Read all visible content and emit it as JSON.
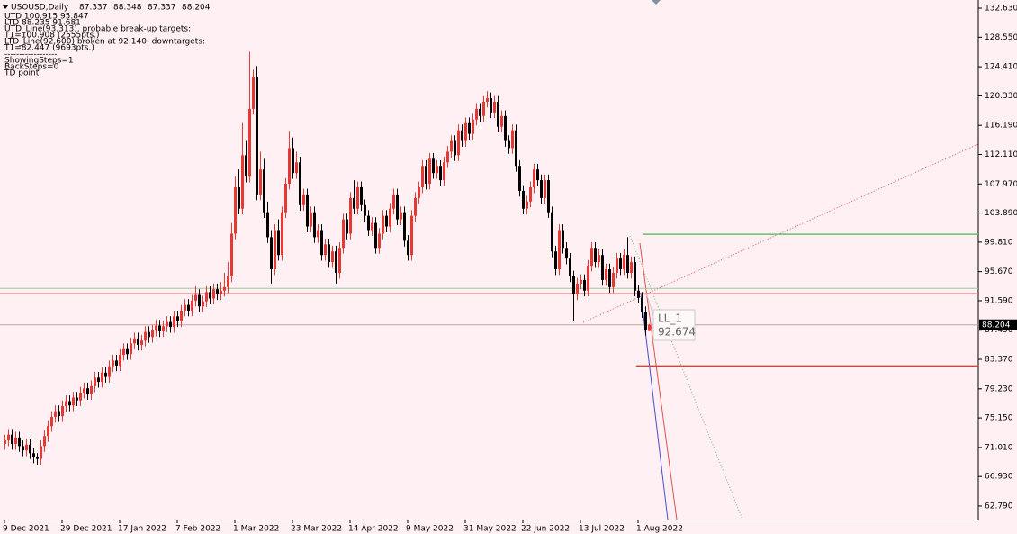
{
  "chart_data": {
    "type": "candlestick",
    "title": "USOUSD,Daily",
    "up_color": "#e53935",
    "down_color": "#000000",
    "background": "#fff0f3",
    "info_lines": [
      "UTD 100.915  95.847",
      "LTD  88.235  91.681",
      "UTD_Line(93.313), probable break-up targets:",
      "T1=100.908 (2555pts.)",
      "LTD_Line(92.600) broken at 92.140, downtargets:",
      "T1=82.447 (9693pts.)",
      "------------------",
      "ShowingSteps=1",
      "BackSteps=0",
      "TD point"
    ],
    "point_label": {
      "label": "LL_1",
      "value": 92.674
    },
    "levels": [
      {
        "value": 93.313,
        "color": "#99cc99"
      },
      {
        "value": 92.6,
        "color": "#e06060"
      },
      {
        "value": 100.908,
        "color": "#66c266"
      },
      {
        "value": 82.447,
        "color": "#e53935"
      }
    ],
    "ylim": [
      60.89,
      133.77
    ],
    "yticks": [
      {
        "value": 132.63,
        "label": "132.630"
      },
      {
        "value": 128.55,
        "label": "128.550"
      },
      {
        "value": 124.41,
        "label": "124.410"
      },
      {
        "value": 120.33,
        "label": "120.330"
      },
      {
        "value": 116.19,
        "label": "116.190"
      },
      {
        "value": 112.11,
        "label": "112.110"
      },
      {
        "value": 107.97,
        "label": "107.970"
      },
      {
        "value": 103.89,
        "label": "103.890"
      },
      {
        "value": 99.81,
        "label": "99.810"
      },
      {
        "value": 95.67,
        "label": "95.670"
      },
      {
        "value": 91.59,
        "label": "91.590"
      },
      {
        "value": 87.45,
        "label": "87.450"
      },
      {
        "value": 83.37,
        "label": "83.370"
      },
      {
        "value": 79.23,
        "label": "79.230"
      },
      {
        "value": 75.15,
        "label": "75.150"
      },
      {
        "value": 71.01,
        "label": "71.010"
      },
      {
        "value": 66.93,
        "label": "66.930"
      },
      {
        "value": 62.79,
        "label": "62.790"
      }
    ],
    "categories": [
      "9 Dec 2021",
      null,
      null,
      null,
      null,
      null,
      null,
      null,
      null,
      null,
      null,
      null,
      null,
      null,
      null,
      null,
      "29 Dec 2021",
      null,
      null,
      null,
      null,
      null,
      null,
      null,
      null,
      null,
      null,
      null,
      null,
      null,
      null,
      null,
      "17 Jan 2022",
      null,
      null,
      null,
      null,
      null,
      null,
      null,
      null,
      null,
      null,
      null,
      null,
      null,
      null,
      null,
      "7 Feb 2022",
      null,
      null,
      null,
      null,
      null,
      null,
      null,
      null,
      null,
      null,
      null,
      null,
      null,
      null,
      null,
      "1 Mar 2022",
      null,
      null,
      null,
      null,
      null,
      null,
      null,
      null,
      null,
      null,
      null,
      null,
      null,
      null,
      null,
      "23 Mar 2022",
      null,
      null,
      null,
      null,
      null,
      null,
      null,
      null,
      null,
      null,
      null,
      null,
      null,
      null,
      null,
      "14 Apr 2022",
      null,
      null,
      null,
      null,
      null,
      null,
      null,
      null,
      null,
      null,
      null,
      null,
      null,
      null,
      null,
      "9 May 2022",
      null,
      null,
      null,
      null,
      null,
      null,
      null,
      null,
      null,
      null,
      null,
      null,
      null,
      null,
      null,
      "31 May 2022",
      null,
      null,
      null,
      null,
      null,
      null,
      null,
      null,
      null,
      null,
      null,
      null,
      null,
      null,
      null,
      "22 Jun 2022",
      null,
      null,
      null,
      null,
      null,
      null,
      null,
      null,
      null,
      null,
      null,
      null,
      null,
      null,
      null,
      "13 Jul 2022",
      null,
      null,
      null,
      null,
      null,
      null,
      null,
      null,
      null,
      null,
      null,
      null,
      null,
      null,
      null,
      "1 Aug 2022",
      null,
      null,
      null
    ],
    "candles": [
      [
        71.5,
        72.8,
        70.7,
        72.0
      ],
      [
        72.0,
        73.6,
        71.2,
        72.8
      ],
      [
        72.8,
        73.6,
        70.7,
        71.5
      ],
      [
        71.5,
        73.2,
        70.7,
        72.4
      ],
      [
        72.4,
        73.2,
        70.4,
        71.2
      ],
      [
        71.2,
        72.0,
        69.8,
        70.6
      ],
      [
        70.6,
        72.2,
        69.8,
        71.4
      ],
      [
        71.4,
        72.2,
        69.4,
        70.2
      ],
      [
        70.2,
        71.0,
        68.8,
        69.6
      ],
      [
        69.6,
        70.2,
        68.6,
        69.4
      ],
      [
        69.4,
        72.0,
        68.6,
        71.2
      ],
      [
        71.2,
        73.4,
        70.4,
        72.6
      ],
      [
        72.6,
        74.8,
        71.8,
        74.0
      ],
      [
        74.0,
        76.1,
        73.2,
        75.3
      ],
      [
        75.3,
        76.9,
        74.5,
        76.1
      ],
      [
        76.1,
        76.9,
        74.6,
        75.4
      ],
      [
        75.4,
        77.6,
        74.6,
        76.8
      ],
      [
        76.8,
        78.3,
        76.0,
        77.5
      ],
      [
        77.5,
        78.3,
        76.1,
        76.9
      ],
      [
        76.9,
        78.8,
        76.1,
        78.0
      ],
      [
        78.0,
        78.8,
        76.8,
        77.6
      ],
      [
        77.6,
        79.5,
        76.8,
        78.7
      ],
      [
        78.7,
        80.1,
        77.9,
        79.3
      ],
      [
        79.3,
        80.1,
        77.7,
        78.5
      ],
      [
        78.5,
        80.4,
        77.7,
        79.6
      ],
      [
        79.6,
        81.6,
        78.8,
        80.8
      ],
      [
        80.8,
        81.6,
        79.4,
        80.2
      ],
      [
        80.2,
        82.3,
        79.4,
        81.5
      ],
      [
        81.5,
        82.3,
        80.1,
        80.9
      ],
      [
        80.9,
        83.2,
        80.1,
        82.4
      ],
      [
        82.4,
        84.0,
        81.6,
        83.2
      ],
      [
        83.2,
        84.0,
        81.7,
        82.5
      ],
      [
        82.5,
        84.8,
        81.7,
        84.0
      ],
      [
        84.0,
        85.6,
        83.2,
        84.8
      ],
      [
        84.8,
        85.6,
        83.3,
        84.1
      ],
      [
        84.1,
        86.4,
        83.3,
        85.6
      ],
      [
        85.6,
        87.1,
        84.8,
        86.3
      ],
      [
        86.3,
        87.1,
        84.6,
        85.4
      ],
      [
        85.4,
        86.8,
        84.6,
        86.0
      ],
      [
        86.0,
        88.0,
        85.2,
        87.2
      ],
      [
        87.2,
        88.0,
        85.7,
        86.5
      ],
      [
        86.5,
        88.2,
        85.7,
        87.4
      ],
      [
        87.4,
        88.9,
        86.6,
        88.1
      ],
      [
        88.1,
        88.9,
        86.5,
        87.3
      ],
      [
        87.3,
        88.8,
        86.5,
        88.0
      ],
      [
        88.0,
        89.4,
        87.2,
        88.6
      ],
      [
        88.6,
        89.4,
        87.1,
        87.9
      ],
      [
        87.9,
        90.2,
        87.1,
        89.4
      ],
      [
        89.4,
        90.2,
        87.9,
        88.7
      ],
      [
        88.7,
        91.0,
        87.9,
        90.2
      ],
      [
        90.2,
        91.8,
        89.4,
        91.0
      ],
      [
        91.0,
        91.8,
        89.4,
        90.2
      ],
      [
        90.2,
        92.4,
        89.4,
        91.6
      ],
      [
        91.6,
        93.6,
        90.8,
        92.4
      ],
      [
        92.4,
        93.2,
        90.0,
        90.8
      ],
      [
        90.8,
        92.3,
        90.0,
        91.5
      ],
      [
        91.5,
        93.6,
        90.7,
        92.8
      ],
      [
        92.8,
        93.6,
        91.1,
        91.9
      ],
      [
        91.9,
        94.0,
        91.1,
        93.2
      ],
      [
        93.2,
        94.0,
        91.7,
        92.5
      ],
      [
        92.5,
        94.2,
        91.7,
        93.0
      ],
      [
        93.0,
        95.5,
        92.2,
        93.5
      ],
      [
        93.5,
        97.0,
        92.7,
        95.0
      ],
      [
        95.0,
        102.5,
        94.2,
        101.0
      ],
      [
        101.0,
        109.0,
        100.2,
        107.5
      ],
      [
        107.5,
        110.0,
        103.7,
        104.5
      ],
      [
        104.5,
        116.5,
        103.7,
        112.0
      ],
      [
        112.0,
        114.0,
        108.2,
        109.0
      ],
      [
        109.0,
        126.5,
        108.2,
        118.5
      ],
      [
        118.5,
        124.0,
        117.7,
        123.0
      ],
      [
        123.0,
        124.5,
        105.7,
        106.5
      ],
      [
        106.5,
        112.5,
        105.7,
        110.0
      ],
      [
        110.0,
        111.5,
        103.2,
        104.0
      ],
      [
        104.0,
        105.5,
        99.7,
        100.5
      ],
      [
        100.5,
        101.5,
        94.0,
        96.0
      ],
      [
        96.0,
        102.3,
        95.2,
        101.5
      ],
      [
        101.5,
        103.0,
        97.2,
        98.0
      ],
      [
        98.0,
        104.8,
        97.2,
        104.0
      ],
      [
        104.0,
        108.8,
        103.2,
        108.0
      ],
      [
        108.0,
        115.3,
        107.2,
        113.0
      ],
      [
        113.0,
        114.5,
        108.7,
        109.5
      ],
      [
        109.5,
        112.5,
        108.7,
        111.0
      ],
      [
        111.0,
        111.8,
        104.2,
        105.0
      ],
      [
        105.0,
        107.3,
        104.2,
        106.5
      ],
      [
        106.5,
        107.3,
        101.2,
        102.0
      ],
      [
        102.0,
        104.8,
        101.2,
        104.0
      ],
      [
        104.0,
        104.8,
        99.7,
        100.5
      ],
      [
        100.5,
        102.3,
        99.7,
        101.5
      ],
      [
        101.5,
        102.3,
        97.2,
        98.0
      ],
      [
        98.0,
        100.3,
        97.2,
        99.5
      ],
      [
        99.5,
        100.3,
        96.2,
        97.0
      ],
      [
        97.0,
        99.3,
        96.2,
        98.5
      ],
      [
        98.5,
        99.3,
        94.0,
        95.5
      ],
      [
        95.5,
        99.8,
        94.7,
        99.0
      ],
      [
        99.0,
        103.8,
        98.2,
        103.0
      ],
      [
        103.0,
        103.8,
        100.2,
        101.0
      ],
      [
        101.0,
        106.8,
        100.2,
        106.0
      ],
      [
        106.0,
        108.5,
        103.7,
        104.5
      ],
      [
        104.5,
        108.3,
        103.7,
        107.5
      ],
      [
        107.5,
        108.3,
        104.2,
        105.0
      ],
      [
        105.0,
        105.8,
        102.7,
        103.5
      ],
      [
        103.5,
        104.3,
        100.7,
        101.5
      ],
      [
        101.5,
        103.3,
        100.7,
        102.5
      ],
      [
        102.5,
        103.3,
        98.2,
        99.0
      ],
      [
        99.0,
        101.8,
        98.2,
        101.0
      ],
      [
        101.0,
        104.3,
        100.2,
        103.5
      ],
      [
        103.5,
        104.3,
        101.2,
        102.0
      ],
      [
        102.0,
        105.3,
        101.2,
        104.5
      ],
      [
        104.5,
        107.3,
        103.7,
        106.5
      ],
      [
        106.5,
        107.3,
        102.2,
        103.0
      ],
      [
        103.0,
        104.8,
        102.2,
        104.0
      ],
      [
        104.0,
        104.8,
        99.2,
        100.0
      ],
      [
        100.0,
        100.8,
        97.2,
        98.0
      ],
      [
        98.0,
        104.3,
        97.2,
        103.5
      ],
      [
        103.5,
        106.8,
        102.7,
        106.0
      ],
      [
        106.0,
        108.3,
        105.2,
        107.5
      ],
      [
        107.5,
        111.3,
        106.7,
        110.5
      ],
      [
        110.5,
        111.3,
        107.2,
        108.0
      ],
      [
        108.0,
        112.3,
        107.2,
        111.5
      ],
      [
        111.5,
        112.3,
        108.7,
        109.5
      ],
      [
        109.5,
        111.3,
        108.7,
        110.5
      ],
      [
        110.5,
        111.3,
        107.7,
        108.5
      ],
      [
        108.5,
        111.8,
        107.7,
        111.0
      ],
      [
        111.0,
        113.3,
        110.2,
        112.5
      ],
      [
        112.5,
        114.8,
        111.7,
        114.0
      ],
      [
        114.0,
        114.8,
        111.2,
        112.0
      ],
      [
        112.0,
        116.3,
        111.2,
        115.5
      ],
      [
        115.5,
        116.3,
        113.2,
        114.0
      ],
      [
        114.0,
        117.3,
        113.2,
        116.5
      ],
      [
        116.5,
        117.3,
        114.2,
        115.0
      ],
      [
        115.0,
        117.8,
        114.2,
        117.0
      ],
      [
        117.0,
        119.3,
        116.2,
        118.5
      ],
      [
        118.5,
        119.3,
        116.7,
        117.5
      ],
      [
        117.5,
        120.3,
        116.7,
        119.5
      ],
      [
        119.5,
        121.0,
        118.7,
        120.0
      ],
      [
        120.0,
        120.8,
        117.2,
        118.0
      ],
      [
        118.0,
        120.3,
        117.2,
        119.5
      ],
      [
        119.5,
        120.3,
        115.2,
        116.0
      ],
      [
        116.0,
        118.3,
        115.2,
        117.5
      ],
      [
        117.5,
        118.3,
        113.2,
        114.0
      ],
      [
        114.0,
        114.8,
        112.2,
        113.0
      ],
      [
        113.0,
        116.3,
        112.2,
        115.5
      ],
      [
        115.5,
        116.3,
        109.7,
        110.5
      ],
      [
        110.5,
        111.3,
        106.2,
        107.0
      ],
      [
        107.0,
        107.8,
        103.7,
        104.5
      ],
      [
        104.5,
        106.3,
        103.7,
        105.5
      ],
      [
        105.5,
        108.3,
        104.7,
        107.5
      ],
      [
        107.5,
        110.8,
        106.7,
        110.0
      ],
      [
        110.0,
        110.8,
        107.7,
        108.5
      ],
      [
        108.5,
        109.3,
        105.2,
        106.0
      ],
      [
        106.0,
        109.3,
        105.2,
        108.5
      ],
      [
        108.5,
        109.3,
        103.2,
        104.0
      ],
      [
        104.0,
        104.8,
        97.7,
        98.5
      ],
      [
        98.5,
        99.3,
        95.2,
        96.0
      ],
      [
        96.0,
        102.3,
        95.2,
        101.5
      ],
      [
        101.5,
        102.3,
        98.2,
        99.0
      ],
      [
        99.0,
        99.8,
        96.7,
        97.5
      ],
      [
        97.5,
        98.3,
        94.2,
        95.0
      ],
      [
        95.0,
        95.8,
        88.7,
        92.5
      ],
      [
        92.5,
        94.8,
        91.7,
        94.0
      ],
      [
        94.0,
        95.3,
        93.2,
        94.5
      ],
      [
        94.5,
        95.3,
        92.2,
        93.0
      ],
      [
        93.0,
        97.3,
        92.2,
        96.5
      ],
      [
        96.5,
        99.8,
        95.7,
        99.0
      ],
      [
        99.0,
        99.8,
        96.2,
        97.0
      ],
      [
        97.0,
        98.8,
        96.2,
        98.0
      ],
      [
        98.0,
        98.8,
        93.7,
        94.5
      ],
      [
        94.5,
        96.8,
        93.7,
        96.0
      ],
      [
        96.0,
        96.8,
        92.7,
        93.5
      ],
      [
        93.5,
        96.3,
        92.7,
        95.5
      ],
      [
        95.5,
        98.3,
        94.7,
        97.5
      ],
      [
        97.5,
        98.3,
        95.2,
        96.0
      ],
      [
        96.0,
        98.8,
        95.2,
        98.0
      ],
      [
        98.0,
        100.5,
        94.7,
        95.5
      ],
      [
        95.5,
        97.8,
        94.7,
        97.0
      ],
      [
        97.0,
        97.8,
        92.2,
        93.0
      ],
      [
        93.0,
        93.8,
        91.2,
        92.0
      ],
      [
        92.0,
        92.8,
        89.2,
        90.0
      ],
      [
        90.0,
        90.8,
        86.7,
        87.5
      ],
      [
        87.337,
        88.348,
        87.337,
        88.204
      ]
    ]
  }
}
